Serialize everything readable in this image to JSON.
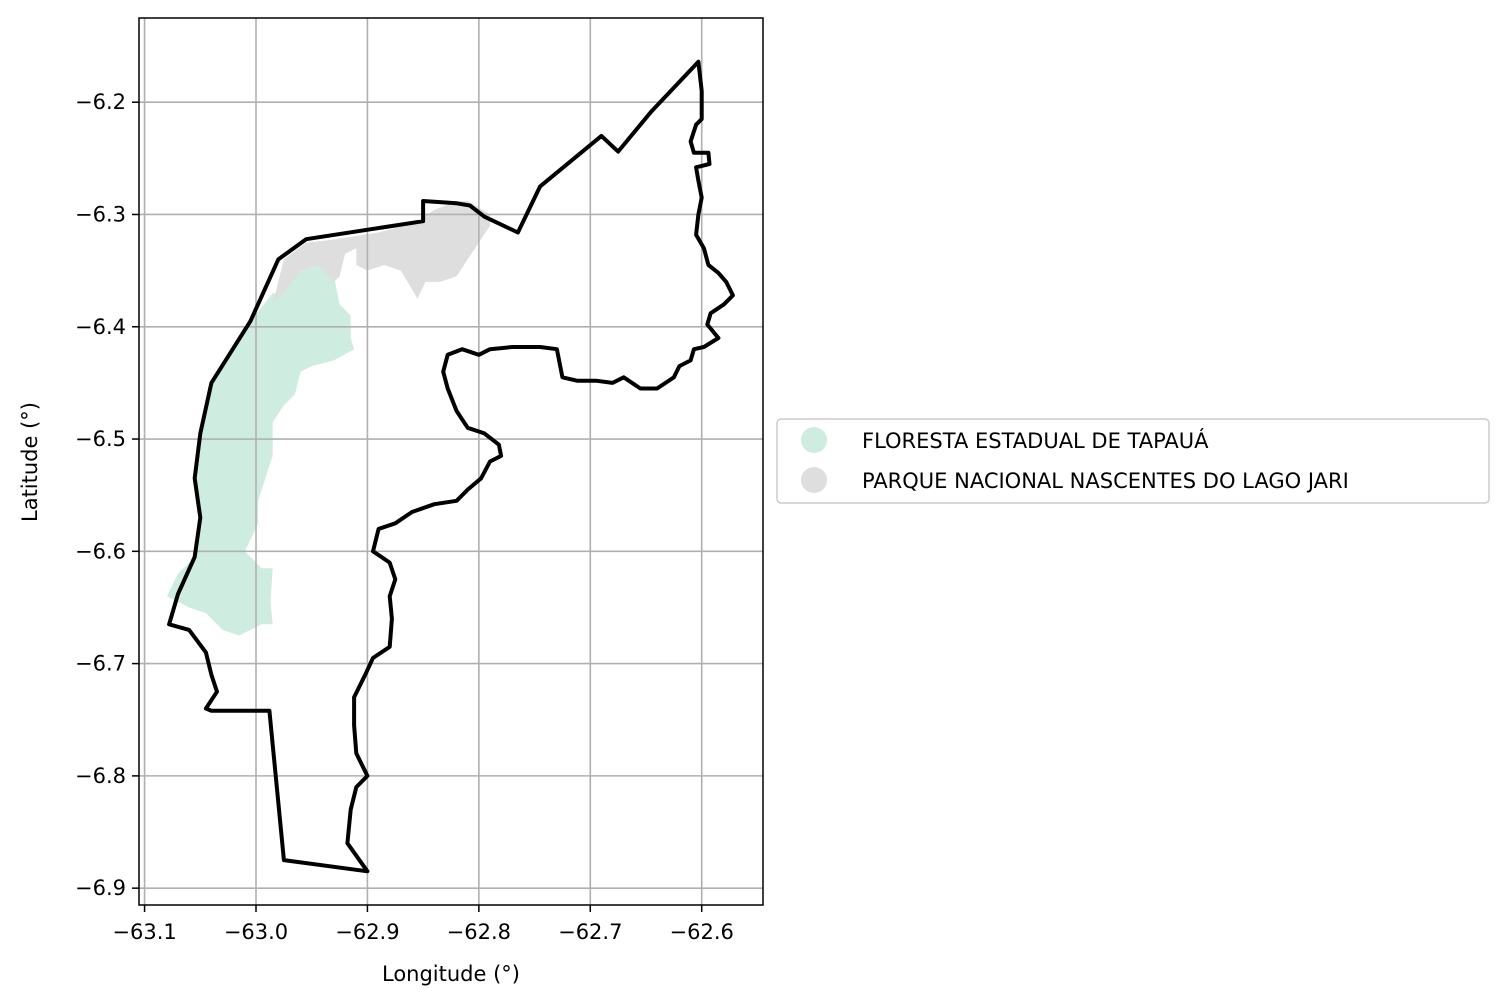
{
  "chart_data": {
    "type": "map",
    "xlabel": "Longitude (°)",
    "ylabel": "Latitude (°)",
    "xlim": [
      -63.105,
      -62.545
    ],
    "ylim": [
      -6.915,
      -6.125
    ],
    "grid": true,
    "legend_position": "right-center",
    "x_ticks": [
      {
        "value": -63.1,
        "label": "−63.1"
      },
      {
        "value": -63.0,
        "label": "−63.0"
      },
      {
        "value": -62.9,
        "label": "−62.9"
      },
      {
        "value": -62.8,
        "label": "−62.8"
      },
      {
        "value": -62.7,
        "label": "−62.7"
      },
      {
        "value": -62.6,
        "label": "−62.6"
      }
    ],
    "y_ticks": [
      {
        "value": -6.2,
        "label": "−6.2"
      },
      {
        "value": -6.3,
        "label": "−6.3"
      },
      {
        "value": -6.4,
        "label": "−6.4"
      },
      {
        "value": -6.5,
        "label": "−6.5"
      },
      {
        "value": -6.6,
        "label": "−6.6"
      },
      {
        "value": -6.7,
        "label": "−6.7"
      },
      {
        "value": -6.8,
        "label": "−6.8"
      },
      {
        "value": -6.9,
        "label": "−6.9"
      }
    ],
    "series": [
      {
        "name": "FLORESTA ESTADUAL DE TAPAUÁ",
        "color": "#cfece0",
        "polygon": [
          [
            -62.94,
            -6.34
          ],
          [
            -62.93,
            -6.355
          ],
          [
            -62.925,
            -6.38
          ],
          [
            -62.915,
            -6.39
          ],
          [
            -62.915,
            -6.41
          ],
          [
            -62.912,
            -6.42
          ],
          [
            -62.93,
            -6.43
          ],
          [
            -62.95,
            -6.435
          ],
          [
            -62.96,
            -6.44
          ],
          [
            -62.965,
            -6.46
          ],
          [
            -62.975,
            -6.47
          ],
          [
            -62.985,
            -6.485
          ],
          [
            -62.985,
            -6.515
          ],
          [
            -62.99,
            -6.53
          ],
          [
            -62.998,
            -6.555
          ],
          [
            -62.998,
            -6.575
          ],
          [
            -63.01,
            -6.6
          ],
          [
            -62.995,
            -6.615
          ],
          [
            -62.985,
            -6.615
          ],
          [
            -62.987,
            -6.645
          ],
          [
            -62.985,
            -6.665
          ],
          [
            -62.995,
            -6.665
          ],
          [
            -63.015,
            -6.675
          ],
          [
            -63.03,
            -6.67
          ],
          [
            -63.045,
            -6.655
          ],
          [
            -63.06,
            -6.65
          ],
          [
            -63.08,
            -6.64
          ],
          [
            -63.07,
            -6.62
          ],
          [
            -63.055,
            -6.605
          ],
          [
            -63.05,
            -6.57
          ],
          [
            -63.055,
            -6.535
          ],
          [
            -63.05,
            -6.49
          ],
          [
            -63.04,
            -6.45
          ],
          [
            -63.02,
            -6.42
          ],
          [
            -63.005,
            -6.395
          ],
          [
            -62.985,
            -6.37
          ],
          [
            -62.975,
            -6.37
          ],
          [
            -62.968,
            -6.355
          ],
          [
            -62.96,
            -6.35
          ]
        ]
      },
      {
        "name": "PARQUE NACIONAL NASCENTES DO LAGO JARI",
        "color": "#dedede",
        "polygon": [
          [
            -62.935,
            -6.323
          ],
          [
            -62.89,
            -6.316
          ],
          [
            -62.86,
            -6.308
          ],
          [
            -62.84,
            -6.296
          ],
          [
            -62.82,
            -6.288
          ],
          [
            -62.81,
            -6.288
          ],
          [
            -62.79,
            -6.3
          ],
          [
            -62.79,
            -6.31
          ],
          [
            -62.8,
            -6.325
          ],
          [
            -62.81,
            -6.34
          ],
          [
            -62.82,
            -6.355
          ],
          [
            -62.835,
            -6.36
          ],
          [
            -62.848,
            -6.36
          ],
          [
            -62.855,
            -6.375
          ],
          [
            -62.87,
            -6.35
          ],
          [
            -62.885,
            -6.345
          ],
          [
            -62.9,
            -6.35
          ],
          [
            -62.91,
            -6.345
          ],
          [
            -62.91,
            -6.33
          ],
          [
            -62.92,
            -6.335
          ],
          [
            -62.925,
            -6.355
          ],
          [
            -62.93,
            -6.36
          ],
          [
            -62.945,
            -6.345
          ],
          [
            -62.96,
            -6.35
          ],
          [
            -62.975,
            -6.37
          ],
          [
            -62.985,
            -6.38
          ],
          [
            -62.975,
            -6.34
          ],
          [
            -62.955,
            -6.325
          ]
        ]
      }
    ],
    "outline": {
      "color": "#000000",
      "polygon": [
        [
          -62.603,
          -6.164
        ],
        [
          -62.6,
          -6.19
        ],
        [
          -62.6,
          -6.215
        ],
        [
          -62.605,
          -6.22
        ],
        [
          -62.61,
          -6.235
        ],
        [
          -62.607,
          -6.245
        ],
        [
          -62.594,
          -6.245
        ],
        [
          -62.593,
          -6.255
        ],
        [
          -62.605,
          -6.258
        ],
        [
          -62.603,
          -6.27
        ],
        [
          -62.6,
          -6.285
        ],
        [
          -62.603,
          -6.3
        ],
        [
          -62.605,
          -6.318
        ],
        [
          -62.598,
          -6.33
        ],
        [
          -62.594,
          -6.345
        ],
        [
          -62.585,
          -6.352
        ],
        [
          -62.578,
          -6.36
        ],
        [
          -62.572,
          -6.372
        ],
        [
          -62.58,
          -6.38
        ],
        [
          -62.592,
          -6.388
        ],
        [
          -62.595,
          -6.398
        ],
        [
          -62.585,
          -6.41
        ],
        [
          -62.598,
          -6.418
        ],
        [
          -62.607,
          -6.42
        ],
        [
          -62.61,
          -6.43
        ],
        [
          -62.62,
          -6.435
        ],
        [
          -62.625,
          -6.445
        ],
        [
          -62.64,
          -6.455
        ],
        [
          -62.655,
          -6.455
        ],
        [
          -62.67,
          -6.445
        ],
        [
          -62.68,
          -6.45
        ],
        [
          -62.695,
          -6.448
        ],
        [
          -62.712,
          -6.448
        ],
        [
          -62.725,
          -6.445
        ],
        [
          -62.73,
          -6.42
        ],
        [
          -62.745,
          -6.418
        ],
        [
          -62.77,
          -6.418
        ],
        [
          -62.79,
          -6.42
        ],
        [
          -62.8,
          -6.425
        ],
        [
          -62.815,
          -6.42
        ],
        [
          -62.828,
          -6.425
        ],
        [
          -62.832,
          -6.44
        ],
        [
          -62.828,
          -6.455
        ],
        [
          -62.82,
          -6.475
        ],
        [
          -62.81,
          -6.49
        ],
        [
          -62.795,
          -6.495
        ],
        [
          -62.782,
          -6.505
        ],
        [
          -62.78,
          -6.515
        ],
        [
          -62.79,
          -6.52
        ],
        [
          -62.798,
          -6.535
        ],
        [
          -62.81,
          -6.545
        ],
        [
          -62.82,
          -6.555
        ],
        [
          -62.84,
          -6.558
        ],
        [
          -62.86,
          -6.565
        ],
        [
          -62.875,
          -6.575
        ],
        [
          -62.89,
          -6.58
        ],
        [
          -62.895,
          -6.6
        ],
        [
          -62.88,
          -6.61
        ],
        [
          -62.875,
          -6.625
        ],
        [
          -62.88,
          -6.64
        ],
        [
          -62.878,
          -6.66
        ],
        [
          -62.88,
          -6.685
        ],
        [
          -62.895,
          -6.695
        ],
        [
          -62.902,
          -6.71
        ],
        [
          -62.912,
          -6.73
        ],
        [
          -62.912,
          -6.755
        ],
        [
          -62.91,
          -6.78
        ],
        [
          -62.9,
          -6.8
        ],
        [
          -62.91,
          -6.81
        ],
        [
          -62.915,
          -6.83
        ],
        [
          -62.918,
          -6.86
        ],
        [
          -62.9,
          -6.885
        ],
        [
          -62.975,
          -6.875
        ],
        [
          -62.988,
          -6.742
        ],
        [
          -63.04,
          -6.742
        ],
        [
          -63.045,
          -6.74
        ],
        [
          -63.035,
          -6.725
        ],
        [
          -63.04,
          -6.71
        ],
        [
          -63.045,
          -6.69
        ],
        [
          -63.06,
          -6.67
        ],
        [
          -63.078,
          -6.665
        ],
        [
          -63.07,
          -6.638
        ],
        [
          -63.055,
          -6.605
        ],
        [
          -63.05,
          -6.57
        ],
        [
          -63.055,
          -6.535
        ],
        [
          -63.05,
          -6.495
        ],
        [
          -63.04,
          -6.45
        ],
        [
          -63.005,
          -6.395
        ],
        [
          -62.98,
          -6.34
        ],
        [
          -62.955,
          -6.322
        ],
        [
          -62.85,
          -6.306
        ],
        [
          -62.85,
          -6.288
        ],
        [
          -62.82,
          -6.29
        ],
        [
          -62.808,
          -6.292
        ],
        [
          -62.795,
          -6.302
        ],
        [
          -62.765,
          -6.316
        ],
        [
          -62.745,
          -6.275
        ],
        [
          -62.69,
          -6.23
        ],
        [
          -62.675,
          -6.244
        ],
        [
          -62.645,
          -6.208
        ]
      ]
    }
  }
}
